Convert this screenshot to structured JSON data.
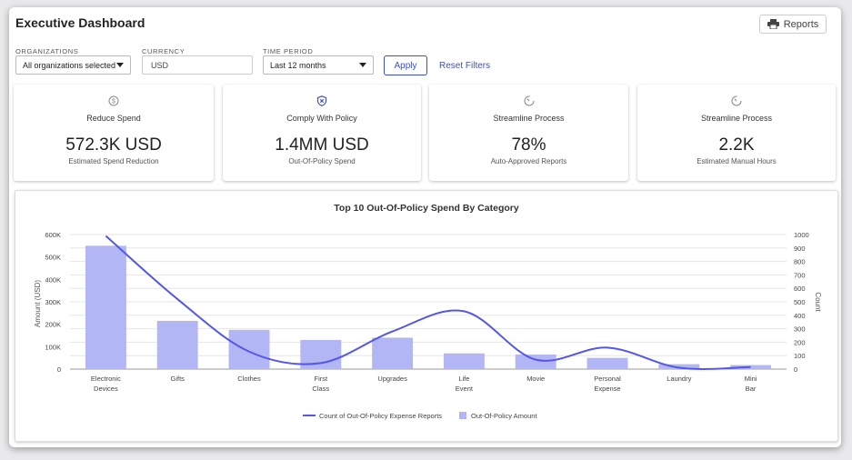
{
  "header": {
    "title": "Executive Dashboard",
    "reports_label": "Reports"
  },
  "filters": {
    "organizations": {
      "label": "ORGANIZATIONS",
      "value": "All organizations selected"
    },
    "currency": {
      "label": "CURRENCY",
      "value": "USD"
    },
    "time_period": {
      "label": "TIME PERIOD",
      "value": "Last 12 months"
    },
    "apply_label": "Apply",
    "reset_label": "Reset Filters"
  },
  "cards": [
    {
      "icon": "dollar-icon",
      "label": "Reduce Spend",
      "value": "572.3K USD",
      "sub": "Estimated Spend Reduction"
    },
    {
      "icon": "shield-icon",
      "label": "Comply With Policy",
      "value": "1.4MM USD",
      "sub": "Out-Of-Policy Spend"
    },
    {
      "icon": "gauge-icon",
      "label": "Streamline Process",
      "value": "78%",
      "sub": "Auto-Approved Reports"
    },
    {
      "icon": "gauge-icon",
      "label": "Streamline Process",
      "value": "2.2K",
      "sub": "Estimated Manual Hours"
    }
  ],
  "colors": {
    "accent": "#3f51b5",
    "bar": "#b3b6f4",
    "line": "#5457e6"
  },
  "chart_data": {
    "type": "bar",
    "title": "Top 10 Out-Of-Policy Spend By Category",
    "categories": [
      [
        "Electronic",
        "Devices"
      ],
      [
        "Gifts"
      ],
      [
        "Clothes"
      ],
      [
        "First",
        "Class"
      ],
      [
        "Upgrades"
      ],
      [
        "Life",
        "Event"
      ],
      [
        "Movie"
      ],
      [
        "Personal",
        "Expense"
      ],
      [
        "Laundry"
      ],
      [
        "Mini",
        "Bar"
      ]
    ],
    "series": [
      {
        "name": "Out-Of-Policy Amount",
        "axis": "left",
        "type": "bar",
        "values": [
          550000,
          215000,
          175000,
          130000,
          140000,
          70000,
          65000,
          50000,
          22000,
          18000
        ]
      },
      {
        "name": "Count of Out-Of-Policy Expense Reports",
        "axis": "right",
        "type": "line",
        "values": [
          990,
          520,
          130,
          45,
          280,
          430,
          70,
          160,
          10,
          15
        ]
      }
    ],
    "ylabel": "Amount (USD)",
    "y2label": "Count",
    "ylim": [
      0,
      600000
    ],
    "y2lim": [
      0,
      1000
    ],
    "yticks": [
      "0",
      "100K",
      "200K",
      "300K",
      "400K",
      "500K",
      "600K"
    ],
    "y2ticks": [
      "0",
      "100",
      "200",
      "300",
      "400",
      "500",
      "600",
      "700",
      "800",
      "900",
      "1000"
    ],
    "legend": [
      "Count of Out-Of-Policy Expense Reports",
      "Out-Of-Policy Amount"
    ],
    "legend_position": "bottom"
  }
}
